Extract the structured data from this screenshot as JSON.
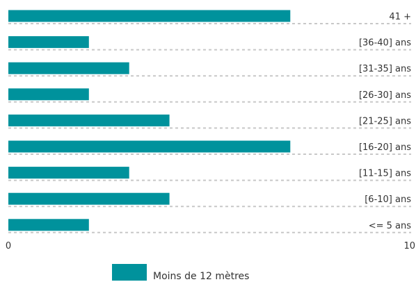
{
  "chart_data": {
    "type": "bar",
    "orientation": "horizontal",
    "categories": [
      "41 +",
      "[36-40] ans",
      "[31-35] ans",
      "[26-30] ans",
      "[21-25] ans",
      "[16-20] ans",
      "[11-15] ans",
      "[6-10] ans",
      "<= 5 ans"
    ],
    "series": [
      {
        "name": "Moins de 12 mètres",
        "values": [
          7,
          2,
          3,
          2,
          4,
          7,
          3,
          4,
          2
        ],
        "color": "#00929c"
      }
    ],
    "xlim": [
      0,
      10
    ],
    "x_ticks": [
      "0",
      "10"
    ],
    "grid": "dashed-row-separators",
    "legend_position": "bottom-center"
  }
}
